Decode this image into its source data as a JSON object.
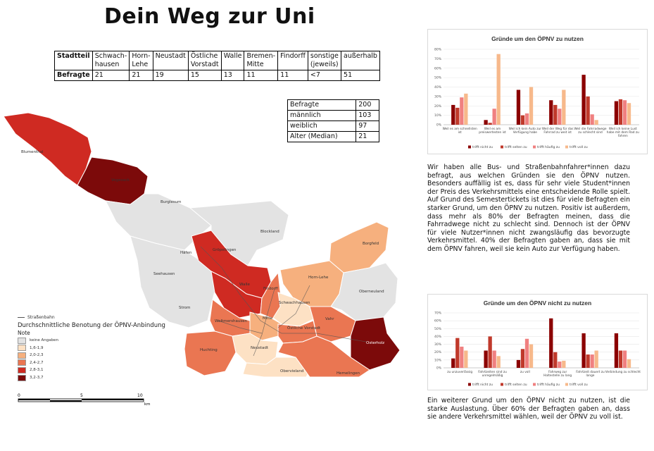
{
  "title": "Dein Weg zur Uni",
  "district_table": {
    "row_label_1": "Stadtteil",
    "districts": [
      "Schwach-hausen",
      "Horn-Lehe",
      "Neustadt",
      "Östliche Vorstadt",
      "Walle",
      "Bremen-Mitte",
      "Findorff",
      "sonstige (jeweils)",
      "außerhalb"
    ],
    "row_label_2": "Befragte",
    "counts": [
      "21",
      "21",
      "19",
      "15",
      "13",
      "11",
      "11",
      "<7",
      "51"
    ]
  },
  "stats_table": {
    "rows": [
      {
        "label": "Befragte",
        "value": "200"
      },
      {
        "label": "männlich",
        "value": "103"
      },
      {
        "label": "weiblich",
        "value": "97"
      },
      {
        "label": "Alter (Median)",
        "value": "21"
      }
    ]
  },
  "map": {
    "district_labels": [
      "Blumenthal",
      "Vegesack",
      "Burglesum",
      "Blockland",
      "Gröpelingen",
      "Häfen",
      "Seehausen",
      "Walle",
      "Findorff",
      "Borgfeld",
      "Horn-Lehe",
      "Schwachhausen",
      "Oberneuland",
      "Strom",
      "Woltmershausen",
      "Mitte",
      "Östliche Vorstadt",
      "Vahr",
      "Osterholz",
      "Huchting",
      "Neustadt",
      "Obervieland",
      "Hemelingen"
    ],
    "colors": {
      "none": "#e3e3e3",
      "c1": "#fde1c4",
      "c2": "#f6b07e",
      "c3": "#ea7652",
      "c4": "#cf2a22",
      "c5": "#7c0a0a"
    }
  },
  "legend": {
    "line_label": "Straßenbahn",
    "title": "Durchschnittliche Benotung der ÖPNV-Anbindung",
    "subtitle": "Note",
    "items": [
      {
        "label": "keine Angaben",
        "color": "#e3e3e3"
      },
      {
        "label": "1,6-1,9",
        "color": "#fde1c4"
      },
      {
        "label": "2,0-2,3",
        "color": "#f6b07e"
      },
      {
        "label": "2,4-2,7",
        "color": "#ea7652"
      },
      {
        "label": "2,8-3,1",
        "color": "#cf2a22"
      },
      {
        "label": "3,2-3,7",
        "color": "#7c0a0a"
      }
    ]
  },
  "scale": {
    "ticks": [
      "0",
      "5",
      "10"
    ],
    "unit": "km"
  },
  "chart_data": [
    {
      "type": "bar",
      "title": "Gründe um den ÖPNV zu nutzen",
      "categories": [
        "Weil es am schnellsten ist",
        "Weil es am preiswertesten ist",
        "Weil ich kein Auto zur Verfügung habe",
        "Weil der Weg für das Fahrrad zu weit ist",
        "Weil die Fahrradwege zu schlecht sind",
        "Weil ich keine Lust habe mit dem Rad zu fahren"
      ],
      "ylim": [
        0,
        80
      ],
      "yticks": [
        "0%",
        "10%",
        "20%",
        "30%",
        "40%",
        "50%",
        "60%",
        "70%",
        "80%"
      ],
      "series": [
        {
          "name": "trifft nicht zu",
          "color": "#8b0000",
          "values": [
            21,
            5,
            37,
            26,
            53,
            25
          ]
        },
        {
          "name": "trifft selten zu",
          "color": "#c0392b",
          "values": [
            18,
            2,
            10,
            21,
            30,
            27
          ]
        },
        {
          "name": "trifft häufig zu",
          "color": "#f08080",
          "values": [
            29,
            17,
            12,
            17,
            11,
            26
          ]
        },
        {
          "name": "trifft voll zu",
          "color": "#f7b98b",
          "values": [
            33,
            75,
            40,
            37,
            5,
            23
          ]
        }
      ]
    },
    {
      "type": "bar",
      "title": "Gründe um den ÖPNV nicht zu nutzen",
      "categories": [
        "zu unzuverlässig",
        "Fahrtzeiten sind zu unregelmäßig",
        "zu voll",
        "Fahrweg zur Haltestelle zu lang",
        "Fahrtzeit dauert zu lange",
        "Verbindung zu schlecht"
      ],
      "ylim": [
        0,
        70
      ],
      "yticks": [
        "0%",
        "10%",
        "20%",
        "30%",
        "40%",
        "50%",
        "60%",
        "70%"
      ],
      "series": [
        {
          "name": "trifft nicht zu",
          "color": "#8b0000",
          "values": [
            12,
            22,
            10,
            63,
            44,
            44
          ]
        },
        {
          "name": "trifft selten zu",
          "color": "#c0392b",
          "values": [
            38,
            40,
            24,
            20,
            17,
            22
          ]
        },
        {
          "name": "trifft häufig zu",
          "color": "#f08080",
          "values": [
            27,
            22,
            37,
            8,
            17,
            22
          ]
        },
        {
          "name": "trifft voll zu",
          "color": "#f7b98b",
          "values": [
            22,
            15,
            30,
            9,
            22,
            11
          ]
        }
      ]
    }
  ],
  "paragraph1": "Wir haben alle Bus- und Straßenbahnfahrer*innen dazu befragt, aus welchen Gründen sie den ÖPNV nutzen. Besonders auffällig ist es, dass für sehr viele Student*innen der Preis des Verkehrsmittels eine entscheidende Rolle spielt. Auf Grund des Semestertickets ist dies für viele Befragten ein starker Grund, um den ÖPNV zu nutzen. Positiv ist außerdem, dass mehr als 80% der Befragten meinen, dass die Fahrradwege nicht zu schlecht sind. Dennoch ist der ÖPNV für viele Nutzer*innen nicht zwangsläufig das bevorzugte Verkehrsmittel. 40% der Befragten gaben an, dass sie mit dem ÖPNV fahren, weil sie kein Auto zur Verfügung haben.",
  "paragraph2": "Ein weiterer Grund um den ÖPNV nicht zu nutzen, ist die starke Auslastung. Über 60% der Befragten gaben an, dass sie andere Verkehrsmittel wählen, weil der ÖPNV zu voll ist."
}
